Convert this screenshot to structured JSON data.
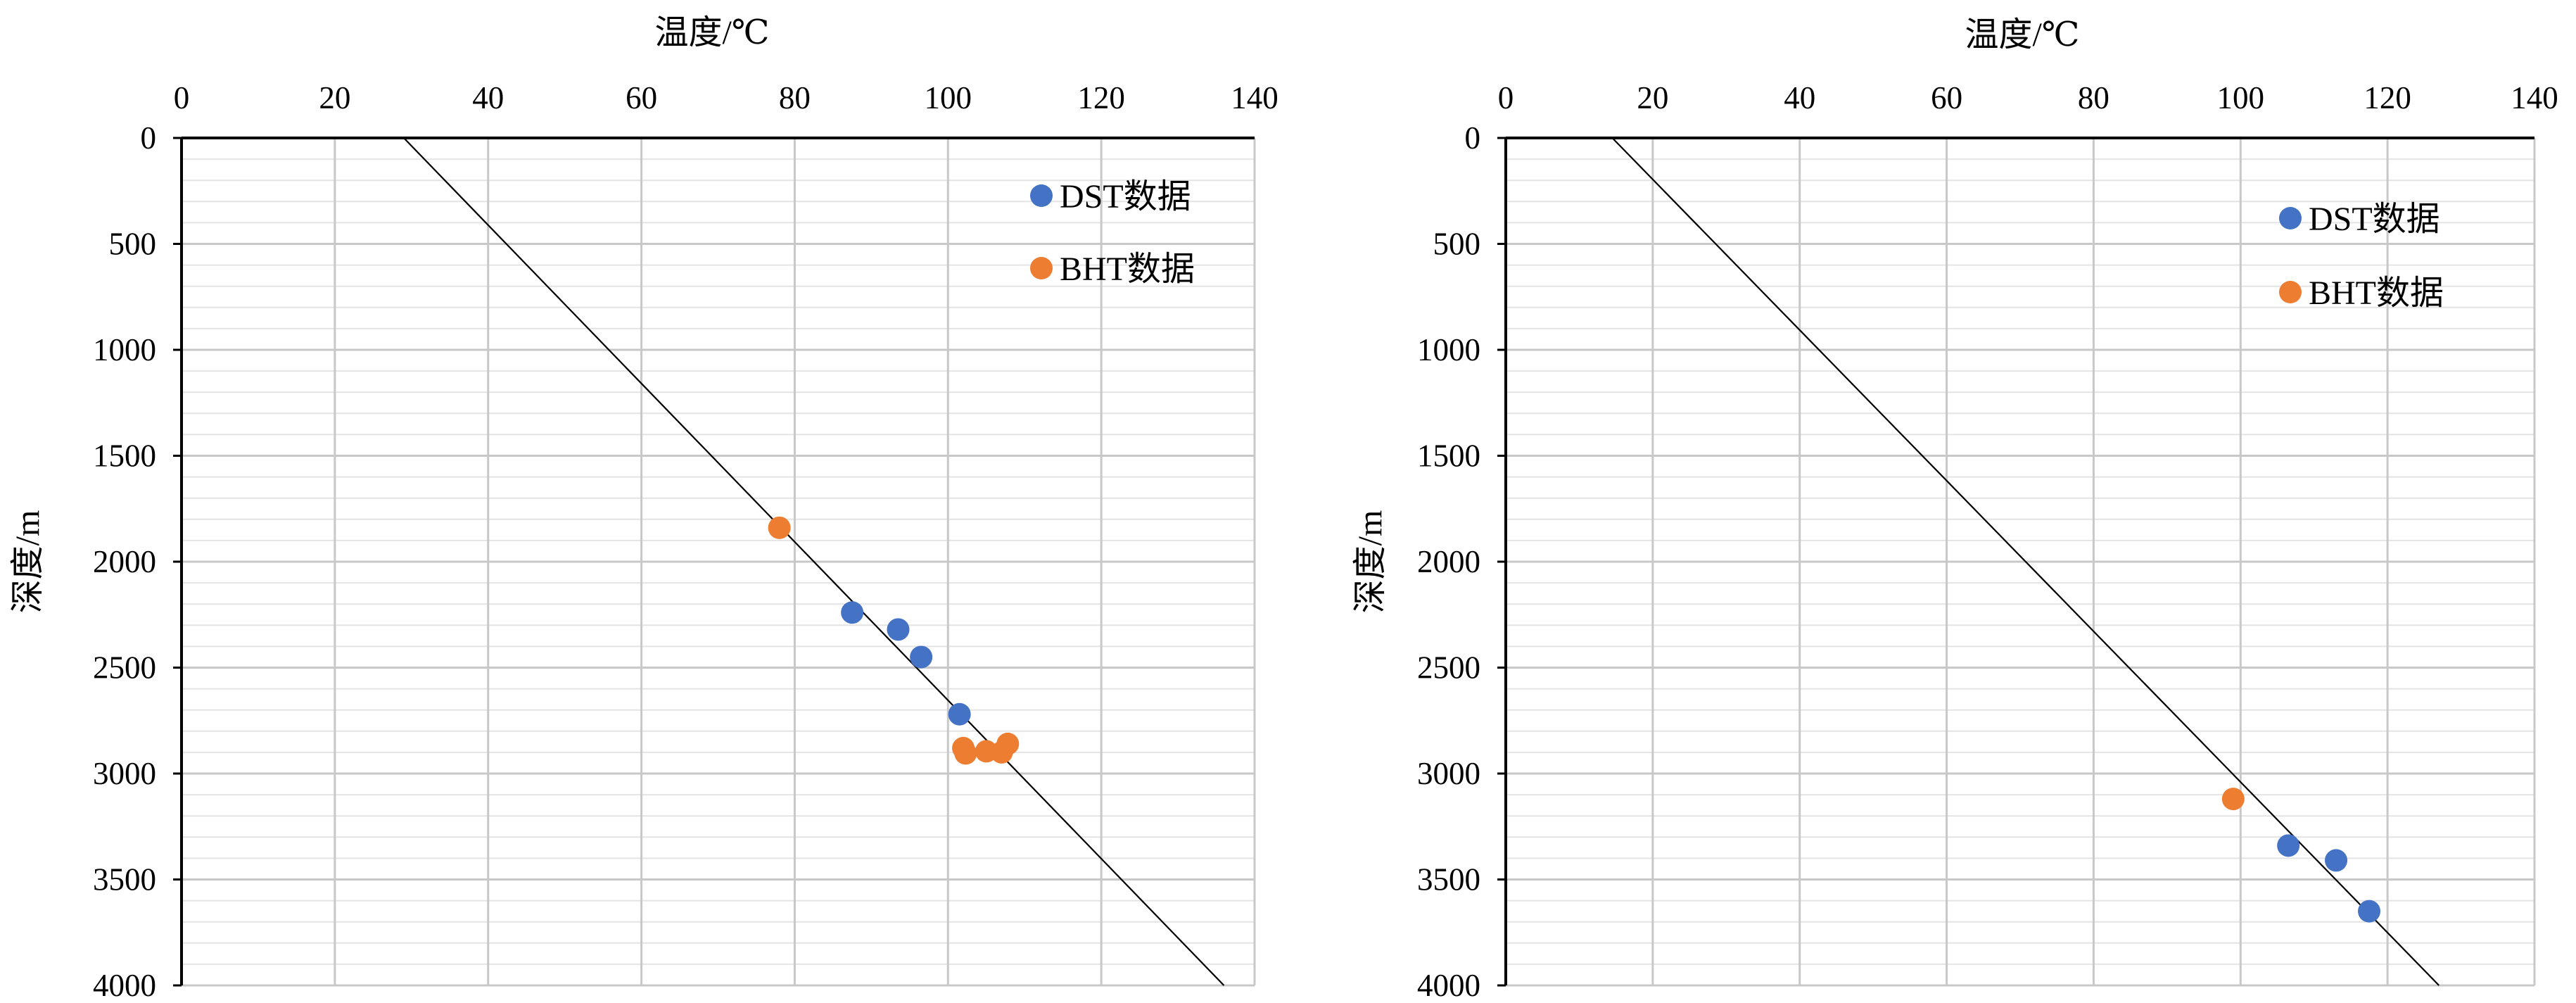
{
  "chart_data": [
    {
      "type": "scatter",
      "title": "",
      "xlabel": "温度/℃",
      "ylabel": "深度/m",
      "x_axis_position": "top",
      "y_axis_inverted": true,
      "xlim": [
        0,
        140
      ],
      "ylim": [
        0,
        4000
      ],
      "x_ticks": [
        "0",
        "20",
        "40",
        "60",
        "80",
        "100",
        "120",
        "140"
      ],
      "y_ticks": [
        "0",
        "500",
        "1000",
        "1500",
        "2000",
        "2500",
        "3000",
        "3500",
        "4000"
      ],
      "grid": true,
      "legend": "top-right",
      "series": [
        {
          "name": "DST数据",
          "color": "#4472C4",
          "points": [
            {
              "x": 87.5,
              "y": 2240
            },
            {
              "x": 93.5,
              "y": 2320
            },
            {
              "x": 96.5,
              "y": 2450
            },
            {
              "x": 101.5,
              "y": 2720
            }
          ]
        },
        {
          "name": "BHT数据",
          "color": "#ED7D31",
          "points": [
            {
              "x": 78,
              "y": 1840
            },
            {
              "x": 102,
              "y": 2880
            },
            {
              "x": 102.3,
              "y": 2905
            },
            {
              "x": 105,
              "y": 2895
            },
            {
              "x": 107,
              "y": 2900
            },
            {
              "x": 107.8,
              "y": 2860
            }
          ]
        }
      ],
      "trendline": {
        "color": "#000000",
        "points": [
          {
            "x": 29,
            "y": 0
          },
          {
            "x": 136,
            "y": 4000
          }
        ]
      }
    },
    {
      "type": "scatter",
      "title": "",
      "xlabel": "温度/℃",
      "ylabel": "深度/m",
      "x_axis_position": "top",
      "y_axis_inverted": true,
      "xlim": [
        0,
        140
      ],
      "ylim": [
        0,
        4000
      ],
      "x_ticks": [
        "0",
        "20",
        "40",
        "60",
        "80",
        "100",
        "120",
        "140"
      ],
      "y_ticks": [
        "0",
        "500",
        "1000",
        "1500",
        "2000",
        "2500",
        "3000",
        "3500",
        "4000"
      ],
      "grid": true,
      "legend": "top-right",
      "series": [
        {
          "name": "DST数据",
          "color": "#4472C4",
          "points": [
            {
              "x": 106.5,
              "y": 3340
            },
            {
              "x": 113,
              "y": 3410
            },
            {
              "x": 117.5,
              "y": 3650
            }
          ]
        },
        {
          "name": "BHT数据",
          "color": "#ED7D31",
          "points": [
            {
              "x": 99,
              "y": 3120
            }
          ]
        }
      ],
      "trendline": {
        "color": "#000000",
        "points": [
          {
            "x": 14.5,
            "y": 0
          },
          {
            "x": 127,
            "y": 4000
          }
        ]
      }
    }
  ]
}
